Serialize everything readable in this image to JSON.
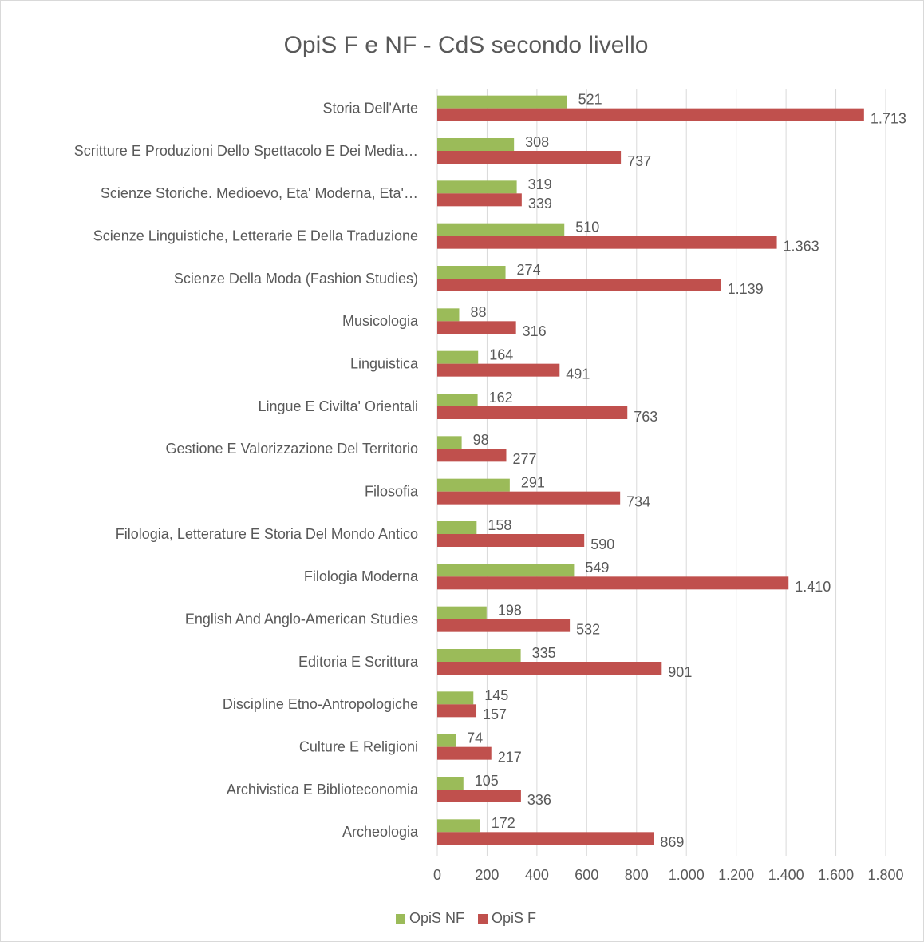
{
  "chart_data": {
    "type": "hbar",
    "title": "OpiS F e NF - CdS secondo livello",
    "categories": [
      "Storia Dell'Arte",
      "Scritture E Produzioni Dello Spettacolo E Dei Media…",
      "Scienze Storiche. Medioevo, Eta' Moderna, Eta'…",
      "Scienze Linguistiche, Letterarie E Della Traduzione",
      "Scienze Della Moda (Fashion Studies)",
      "Musicologia",
      "Linguistica",
      "Lingue E Civilta' Orientali",
      "Gestione E Valorizzazione Del Territorio",
      "Filosofia",
      "Filologia, Letterature E Storia Del Mondo Antico",
      "Filologia Moderna",
      "English And Anglo-American Studies",
      "Editoria E Scrittura",
      "Discipline Etno-Antropologiche",
      "Culture E Religioni",
      "Archivistica E Biblioteconomia",
      "Archeologia"
    ],
    "series": [
      {
        "name": "OpiS NF",
        "color": "#9bbb59",
        "values": [
          521,
          308,
          319,
          510,
          274,
          88,
          164,
          162,
          98,
          291,
          158,
          549,
          198,
          335,
          145,
          74,
          105,
          172
        ]
      },
      {
        "name": "OpiS F",
        "color": "#c0504d",
        "values": [
          1713,
          737,
          339,
          1363,
          1139,
          316,
          491,
          763,
          277,
          734,
          590,
          1410,
          532,
          901,
          157,
          217,
          336,
          869
        ],
        "value_labels": [
          "1.713",
          "737",
          "339",
          "1.363",
          "1.139",
          "316",
          "491",
          "763",
          "277",
          "734",
          "590",
          "1.410",
          "532",
          "901",
          "157",
          "217",
          "336",
          "869"
        ]
      }
    ],
    "xlim": [
      0,
      1800
    ],
    "xticks": [
      0,
      200,
      400,
      600,
      800,
      {
        "value": 1000,
        "label": "1.000"
      },
      {
        "value": 1200,
        "label": "1.200"
      },
      {
        "value": 1400,
        "label": "1.400"
      },
      {
        "value": 1600,
        "label": "1.600"
      },
      {
        "value": 1800,
        "label": "1.800"
      }
    ],
    "grid": true,
    "legend": "bottom"
  }
}
